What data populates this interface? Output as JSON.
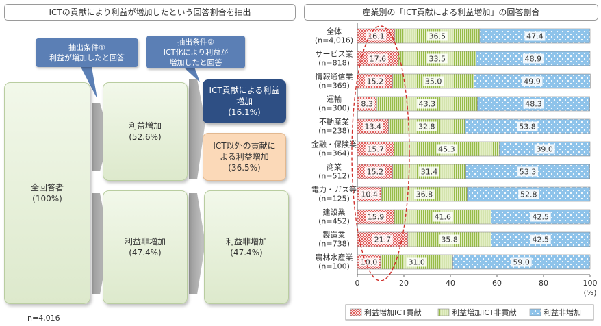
{
  "left_panel": {
    "title": "ICTの貢献により利益が増加したという回答割合を抽出",
    "callout1": {
      "line1": "抽出条件①",
      "line2": "利益が増加したと回答"
    },
    "callout2": {
      "line1": "抽出条件②",
      "line2": "ICT化により利益が",
      "line3": "増加したと回答"
    },
    "all": {
      "label": "全回答者",
      "value": "(100%)"
    },
    "increase": {
      "label": "利益増加",
      "value": "(52.6%)"
    },
    "non_increase_mid": {
      "label": "利益非増加",
      "value": "(47.4%)"
    },
    "ict_contrib": {
      "line1": "ICT貢献による利益",
      "line2": "増加",
      "value": "(16.1%)"
    },
    "other_contrib": {
      "line1": "ICT以外の貢献に",
      "line2": "よる利益増加",
      "value": "(36.5%)"
    },
    "non_increase_right": {
      "label": "利益非増加",
      "value": "(47.4%)"
    },
    "n_note": "n=4,016"
  },
  "chart_data": {
    "type": "bar",
    "orientation": "horizontal",
    "stacked": true,
    "title": "産業別の「ICT貢献による利益増加」の回答割合",
    "categories": [
      {
        "name": "全体",
        "n": "(n=4,016)"
      },
      {
        "name": "サービス業",
        "n": "(n=818)"
      },
      {
        "name": "情報通信業",
        "n": "(n=369)"
      },
      {
        "name": "運輸",
        "n": "(n=300)"
      },
      {
        "name": "不動産業",
        "n": "(n=238)"
      },
      {
        "name": "金融・保険業",
        "n": "(n=364)"
      },
      {
        "name": "商業",
        "n": "(n=512)"
      },
      {
        "name": "電力・ガス等",
        "n": "(n=125)"
      },
      {
        "name": "建設業",
        "n": "(n=452)"
      },
      {
        "name": "製造業",
        "n": "(n=738)"
      },
      {
        "name": "農林水産業",
        "n": "(n=100)"
      }
    ],
    "series": [
      {
        "name": "利益増加ICT貢献",
        "color": "#e8716f",
        "values": [
          16.1,
          17.6,
          15.2,
          8.3,
          13.4,
          15.7,
          15.2,
          10.4,
          15.9,
          21.7,
          10.0
        ]
      },
      {
        "name": "利益増加ICT非貢献",
        "color": "#a6c75a",
        "values": [
          36.5,
          33.5,
          35.0,
          43.3,
          32.8,
          45.3,
          31.4,
          36.8,
          41.6,
          35.8,
          31.0
        ]
      },
      {
        "name": "利益非増加",
        "color": "#8ec3ea",
        "values": [
          47.4,
          48.9,
          49.9,
          48.3,
          53.8,
          39.0,
          53.3,
          52.8,
          42.5,
          42.5,
          59.0
        ]
      }
    ],
    "value_labels": [
      [
        "16.1",
        "36.5",
        "47.4"
      ],
      [
        "17.6",
        "33.5",
        "48.9"
      ],
      [
        "15.2",
        "35.0",
        "49.9"
      ],
      [
        "8.3",
        "43.3",
        "48.3"
      ],
      [
        "13.4",
        "32.8",
        "53.8"
      ],
      [
        "15.7",
        "45.3",
        "39.0"
      ],
      [
        "15.2",
        "31.4",
        "53.3"
      ],
      [
        "10.4",
        "36.8",
        "52.8"
      ],
      [
        "15.9",
        "41.6",
        "42.5"
      ],
      [
        "21.7",
        "35.8",
        "42.5"
      ],
      [
        "10.0",
        "31.0",
        "59.0"
      ]
    ],
    "xlim": [
      0,
      100
    ],
    "xticks": [
      "0",
      "20",
      "40",
      "60",
      "80",
      "100"
    ],
    "xunit": "(%)",
    "legend_position": "bottom",
    "annotation": "dashed ellipse around the first segment column"
  }
}
